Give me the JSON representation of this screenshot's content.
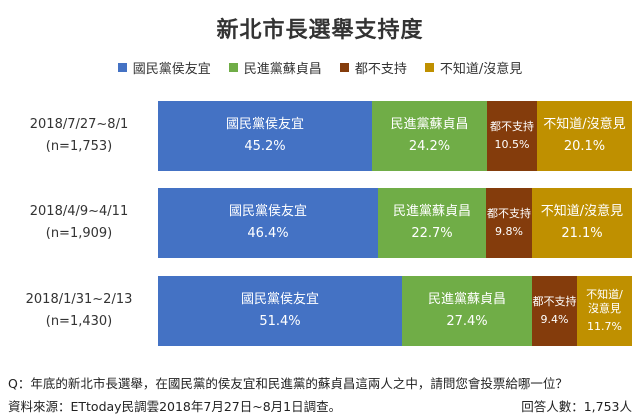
{
  "title": "新北市長選舉支持度",
  "chart_data": {
    "type": "bar",
    "orientation": "horizontal",
    "stacked": true,
    "percent_stacked": true,
    "legend_position": "top",
    "categories": [
      {
        "label_line1": "2018/7/27~8/1",
        "label_line2": "(n=1,753)"
      },
      {
        "label_line1": "2018/4/9~4/11",
        "label_line2": "(n=1,909)"
      },
      {
        "label_line1": "2018/1/31~2/13",
        "label_line2": "(n=1,430)"
      }
    ],
    "series": [
      {
        "name": "國民黨侯友宜",
        "color": "#4472c4",
        "values": [
          45.2,
          46.4,
          51.4
        ],
        "labels": [
          "45.2%",
          "46.4%",
          "51.4%"
        ]
      },
      {
        "name": "民進黨蘇貞昌",
        "color": "#70ad47",
        "values": [
          24.2,
          22.7,
          27.4
        ],
        "labels": [
          "24.2%",
          "22.7%",
          "27.4%"
        ]
      },
      {
        "name": "都不支持",
        "color": "#843c0c",
        "values": [
          10.5,
          9.8,
          9.4
        ],
        "labels": [
          "10.5%",
          "9.8%",
          "9.4%"
        ]
      },
      {
        "name": "不知道/沒意見",
        "color": "#bf9000",
        "values": [
          20.1,
          21.1,
          11.7
        ],
        "labels": [
          "20.1%",
          "21.1%",
          "11.7%"
        ]
      }
    ],
    "last_segment_name_split": [
      "不知道/",
      "沒意見"
    ]
  },
  "footer": {
    "question": "Q：年底的新北市長選舉，在國民黨的侯友宜和民進黨的蘇貞昌這兩人之中，請問您會投票給哪一位？",
    "source": "資料來源：ETtoday民調雲2018年7月27日~8月1日調查。",
    "respondents": "回答人數：1,753人"
  }
}
